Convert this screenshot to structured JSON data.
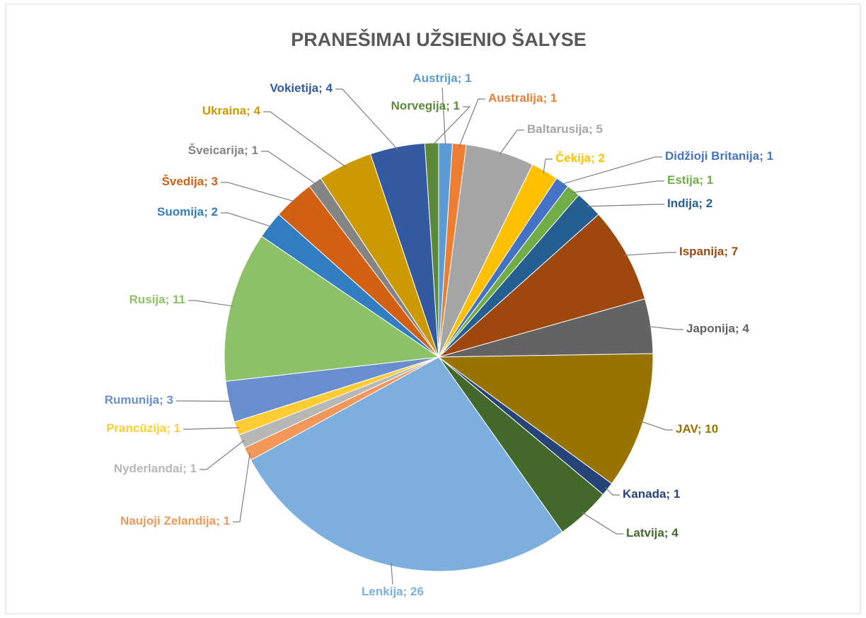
{
  "chart_data": {
    "type": "pie",
    "title": "PRANEŠIMAI UŽSIENIO ŠALYSE",
    "categories": [
      "Austrija",
      "Australija",
      "Baltarusija",
      "Čekija",
      "Didžioji Britanija",
      "Estija",
      "Indija",
      "Ispanija",
      "Japonija",
      "JAV",
      "Kanada",
      "Latvija",
      "Lenkija",
      "Naujoji Zelandija",
      "Nyderlandai",
      "Prancūzija",
      "Rumunija",
      "Rusija",
      "Suomija",
      "Švedija",
      "Šveicarija",
      "Ukraina",
      "Vokietija",
      "Norvegija"
    ],
    "values": [
      1,
      1,
      5,
      2,
      1,
      1,
      2,
      7,
      4,
      10,
      1,
      4,
      26,
      1,
      1,
      1,
      3,
      11,
      2,
      3,
      1,
      4,
      4,
      1
    ],
    "colors": [
      "#5B9BD5",
      "#ED7D31",
      "#A5A5A5",
      "#FFC000",
      "#4472C4",
      "#70AD47",
      "#255E91",
      "#9E480E",
      "#636363",
      "#997300",
      "#264478",
      "#43682B",
      "#7CAFDD",
      "#F1975A",
      "#B7B7B7",
      "#FFCD33",
      "#698ED0",
      "#8CC168",
      "#327DC2",
      "#D26012",
      "#848484",
      "#CC9A00",
      "#335AA1",
      "#5A8A39"
    ]
  }
}
